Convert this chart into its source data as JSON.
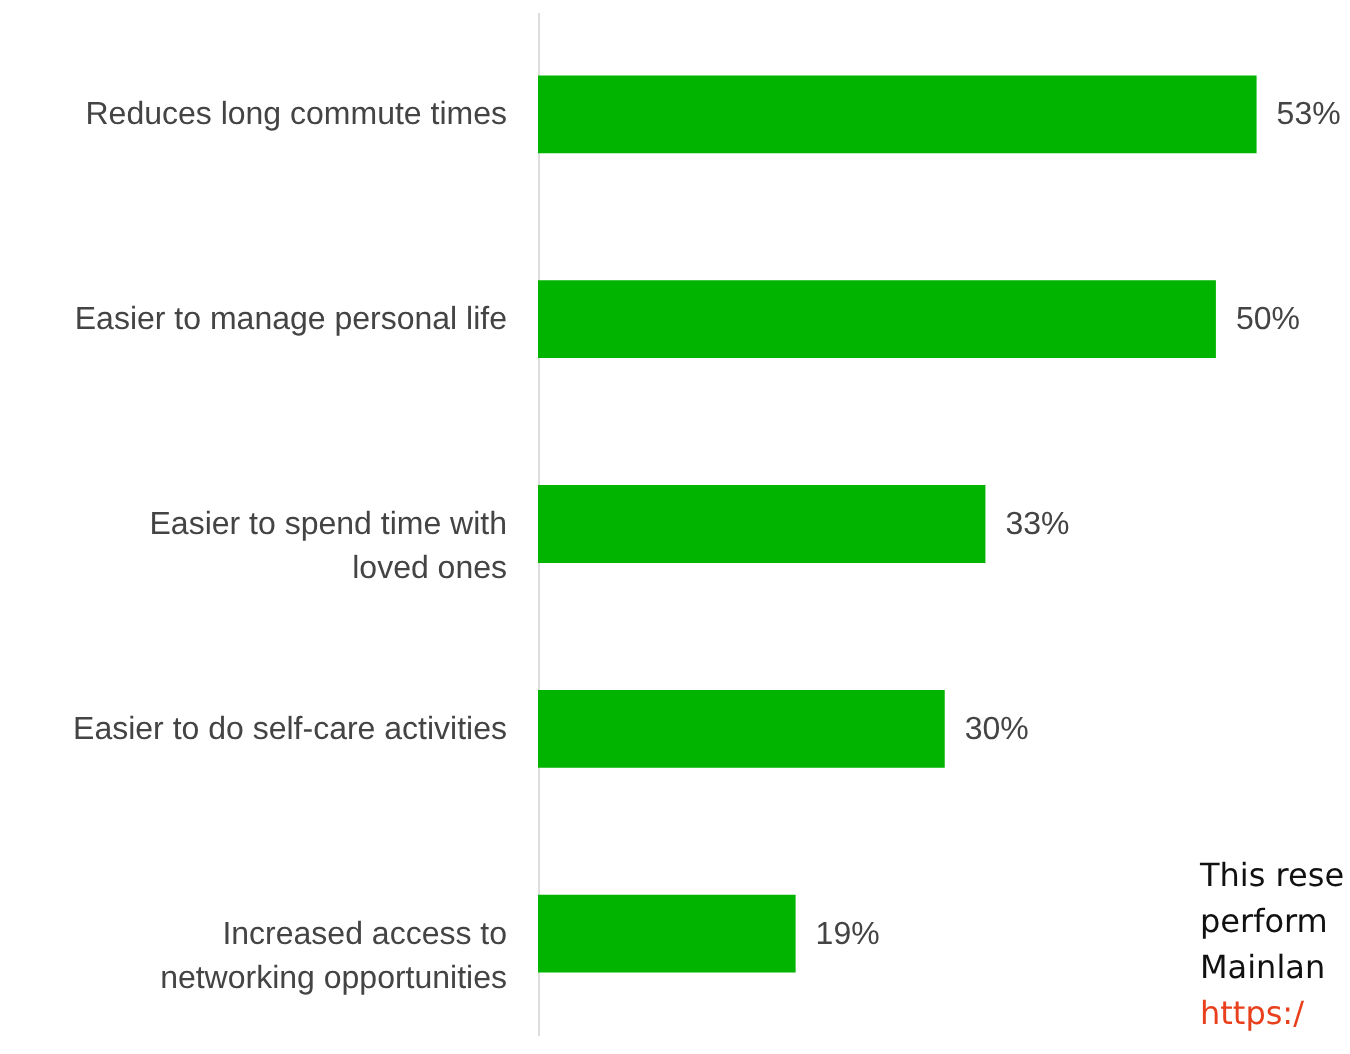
{
  "chart_data": {
    "type": "bar",
    "orientation": "horizontal",
    "categories": [
      "Reduces long commute times",
      "Easier to manage personal life",
      "Easier to spend time with\nloved ones",
      "Easier to do self-care activities",
      "Increased access to\nnetworking opportunities"
    ],
    "values": [
      53,
      50,
      33,
      30,
      19
    ],
    "color": "#00b400",
    "value_labels": [
      "53%",
      "50%",
      "33%",
      "30%",
      "19%"
    ],
    "annotations": [
      "This rese",
      "perform",
      "Mainlan",
      "https:/"
    ]
  }
}
